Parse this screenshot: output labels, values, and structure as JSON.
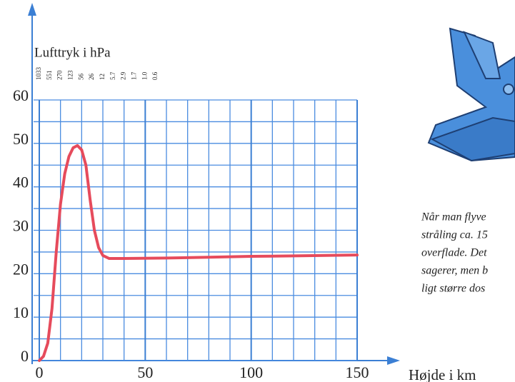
{
  "chart_data": {
    "type": "line",
    "top_axis_label": "Lufttryk i hPa",
    "top_ticks": [
      {
        "value": 0,
        "label": "1033"
      },
      {
        "value": 5,
        "label": "551"
      },
      {
        "value": 10,
        "label": "270"
      },
      {
        "value": 15,
        "label": "123"
      },
      {
        "value": 20,
        "label": "56"
      },
      {
        "value": 25,
        "label": "26"
      },
      {
        "value": 30,
        "label": "12"
      },
      {
        "value": 35,
        "label": "5.7"
      },
      {
        "value": 40,
        "label": "2.9"
      },
      {
        "value": 45,
        "label": "1.7"
      },
      {
        "value": 50,
        "label": "1.0"
      },
      {
        "value": 55,
        "label": "0.6"
      }
    ],
    "x_label": "Højde i km",
    "x": [
      0,
      2,
      4,
      6,
      8,
      10,
      12,
      14,
      16,
      18,
      20,
      22,
      24,
      26,
      28,
      30,
      33,
      40,
      60,
      80,
      100,
      120,
      150
    ],
    "series": [
      {
        "color": "#e64b5c",
        "values": [
          0,
          1,
          4,
          12,
          25,
          36,
          43,
          47,
          49,
          49.5,
          48.5,
          45,
          37,
          30,
          26,
          24.2,
          23.5,
          23.5,
          23.6,
          23.8,
          24,
          24.1,
          24.3
        ]
      }
    ],
    "xlim": [
      0,
      150
    ],
    "ylim": [
      0,
      60
    ],
    "xticks": [
      0,
      50,
      100,
      150
    ],
    "yticks": [
      0,
      10,
      20,
      30,
      40,
      50,
      60
    ],
    "x_grid": [
      0,
      10,
      20,
      30,
      40,
      50,
      60,
      70,
      80,
      90,
      100,
      110,
      120,
      130,
      140,
      150
    ],
    "y_grid": [
      0,
      5,
      10,
      15,
      20,
      25,
      30,
      35,
      40,
      45,
      50,
      55,
      60
    ]
  },
  "caption": {
    "lines": [
      "Når man flyve",
      "stråling ca. 15",
      "overflade. Det",
      "sagerer, men b",
      "ligt større dos"
    ]
  }
}
